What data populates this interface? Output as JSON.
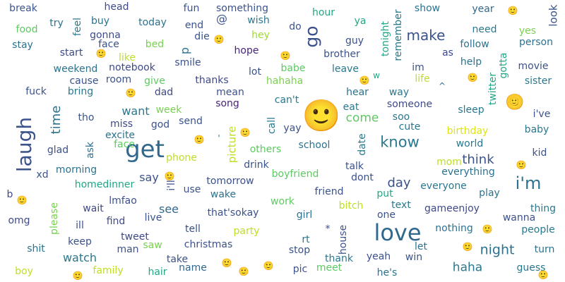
{
  "words": [
    {
      "text": "love",
      "color": "#31688e"
    },
    {
      "text": "get",
      "color": "#31688e"
    },
    {
      "text": "laugh",
      "color": "#3b528b"
    },
    {
      "text": "i'm",
      "color": "#2c728e"
    },
    {
      "text": "🙂",
      "color": "#21a685"
    },
    {
      "text": "know",
      "color": "#2a788e"
    },
    {
      "text": "day",
      "color": "#3b528b"
    },
    {
      "text": "night",
      "color": "#2c728e"
    },
    {
      "text": "make",
      "color": "#3b528b"
    },
    {
      "text": "go",
      "color": "#3b528b"
    },
    {
      "text": "come",
      "color": "#5ec962"
    },
    {
      "text": "time",
      "color": "#2c728e"
    },
    {
      "text": "think",
      "color": "#3b528b"
    },
    {
      "text": "haha",
      "color": "#2a788e"
    },
    {
      "text": "want",
      "color": "#2a788e"
    },
    {
      "text": "see",
      "color": "#31688e"
    },
    {
      "text": "say",
      "color": "#3b528b"
    },
    {
      "text": "watch",
      "color": "#2a788e"
    },
    {
      "text": "tonight",
      "color": "#21a685"
    },
    {
      "text": "something",
      "color": "#3b528b"
    },
    {
      "text": "🙂",
      "color": "#dde318"
    },
    {
      "text": "look",
      "color": "#3b528b"
    },
    {
      "text": "picture",
      "color": "#bddf26"
    },
    {
      "text": "head",
      "color": "#3e4a89"
    },
    {
      "text": "break",
      "color": "#3b528b"
    },
    {
      "text": "fun",
      "color": "#3b528b"
    },
    {
      "text": "wish",
      "color": "#2a788e"
    },
    {
      "text": "hour",
      "color": "#22a785"
    },
    {
      "text": "show",
      "color": "#2c728e"
    },
    {
      "text": "year",
      "color": "#31688e"
    },
    {
      "text": "🙂",
      "color": "#bddf26"
    },
    {
      "text": "food",
      "color": "#5ec962"
    },
    {
      "text": "try",
      "color": "#2c728e"
    },
    {
      "text": "feel",
      "color": "#2a788e"
    },
    {
      "text": "buy",
      "color": "#2c728e"
    },
    {
      "text": "today",
      "color": "#2c728e"
    },
    {
      "text": "end",
      "color": "#3b528b"
    },
    {
      "text": "@",
      "color": "#3b528b"
    },
    {
      "text": "do",
      "color": "#3b528b"
    },
    {
      "text": "ya",
      "color": "#22a785"
    },
    {
      "text": "remember",
      "color": "#2a788e"
    },
    {
      "text": "need",
      "color": "#2a788e"
    },
    {
      "text": "yes",
      "color": "#7ad151"
    },
    {
      "text": "stay",
      "color": "#2c728e"
    },
    {
      "text": "gonna",
      "color": "#3e4a89"
    },
    {
      "text": "face",
      "color": "#3b528b"
    },
    {
      "text": "bed",
      "color": "#7ad151"
    },
    {
      "text": "p",
      "color": "#2c728e"
    },
    {
      "text": "die",
      "color": "#3b528b"
    },
    {
      "text": "🙂",
      "color": "#3e4a89"
    },
    {
      "text": "hey",
      "color": "#a0da39"
    },
    {
      "text": "guy",
      "color": "#3b528b"
    },
    {
      "text": "follow",
      "color": "#2c728e"
    },
    {
      "text": "person",
      "color": "#2c728e"
    },
    {
      "text": "start",
      "color": "#3e4a89"
    },
    {
      "text": "🙂",
      "color": "#3e4a89"
    },
    {
      "text": "like",
      "color": "#bddf26"
    },
    {
      "text": "smile",
      "color": "#3b528b"
    },
    {
      "text": "hope",
      "color": "#482475"
    },
    {
      "text": "🙂",
      "color": "#bddf26"
    },
    {
      "text": "brother",
      "color": "#3b528b"
    },
    {
      "text": "as",
      "color": "#3e4a89"
    },
    {
      "text": "help",
      "color": "#2c728e"
    },
    {
      "text": "gotta",
      "color": "#21a685"
    },
    {
      "text": "movie",
      "color": "#3b528b"
    },
    {
      "text": "weekend",
      "color": "#2c728e"
    },
    {
      "text": "notebook",
      "color": "#3e4a89"
    },
    {
      "text": "lot",
      "color": "#3b528b"
    },
    {
      "text": "babe",
      "color": "#5ec962"
    },
    {
      "text": "leave",
      "color": "#2a788e"
    },
    {
      "text": "w",
      "color": "#22a785"
    },
    {
      "text": "im",
      "color": "#3b528b"
    },
    {
      "text": "🙂",
      "color": "#3e4a89"
    },
    {
      "text": "twitter",
      "color": "#21a685"
    },
    {
      "text": "sister",
      "color": "#2a788e"
    },
    {
      "text": "cause",
      "color": "#3b528b"
    },
    {
      "text": "room",
      "color": "#3b528b"
    },
    {
      "text": "give",
      "color": "#5ec962"
    },
    {
      "text": "hahaha",
      "color": "#7ad151"
    },
    {
      "text": "🙂",
      "color": "#3e4a89"
    },
    {
      "text": "life",
      "color": "#bddf26"
    },
    {
      "text": "fuck",
      "color": "#3b528b"
    },
    {
      "text": "bring",
      "color": "#2a788e"
    },
    {
      "text": "🙂",
      "color": "#bddf26"
    },
    {
      "text": "dad",
      "color": "#3e4a89"
    },
    {
      "text": "thanks",
      "color": "#3e4a89"
    },
    {
      "text": "mean",
      "color": "#3b528b"
    },
    {
      "text": "hear",
      "color": "#2c728e"
    },
    {
      "text": "way",
      "color": "#2a788e"
    },
    {
      "text": "^",
      "color": "#31688e"
    },
    {
      "text": "🙂",
      "color": "#dde318"
    },
    {
      "text": "can't",
      "color": "#2a788e"
    },
    {
      "text": "song",
      "color": "#482475"
    },
    {
      "text": "eat",
      "color": "#2a788e"
    },
    {
      "text": "someone",
      "color": "#3e4a89"
    },
    {
      "text": "tho",
      "color": "#3b528b"
    },
    {
      "text": "week",
      "color": "#7ad151"
    },
    {
      "text": "call",
      "color": "#2a788e"
    },
    {
      "text": "soo",
      "color": "#2a788e"
    },
    {
      "text": "sleep",
      "color": "#2a788e"
    },
    {
      "text": "i've",
      "color": "#3b528b"
    },
    {
      "text": "miss",
      "color": "#3e4a89"
    },
    {
      "text": "send",
      "color": "#3b528b"
    },
    {
      "text": "yay",
      "color": "#3b528b"
    },
    {
      "text": "cute",
      "color": "#2a788e"
    },
    {
      "text": "excite",
      "color": "#2c728e"
    },
    {
      "text": "god",
      "color": "#3b528b"
    },
    {
      "text": "🙂",
      "color": "#482475"
    },
    {
      "text": "'",
      "color": "#2a788e"
    },
    {
      "text": "🙂",
      "color": "#3b528b"
    },
    {
      "text": "birthday",
      "color": "#dde318"
    },
    {
      "text": "baby",
      "color": "#2a788e"
    },
    {
      "text": "glad",
      "color": "#3b528b"
    },
    {
      "text": "ask",
      "color": "#2c728e"
    },
    {
      "text": "others",
      "color": "#5ec962"
    },
    {
      "text": "school",
      "color": "#2c728e"
    },
    {
      "text": "date",
      "color": "#2a788e"
    },
    {
      "text": "world",
      "color": "#2a788e"
    },
    {
      "text": "kid",
      "color": "#3b528b"
    },
    {
      "text": "face",
      "color": "#5ec962"
    },
    {
      "text": "phone",
      "color": "#bddf26"
    },
    {
      "text": "drink",
      "color": "#3b528b"
    },
    {
      "text": "mom",
      "color": "#bddf26"
    },
    {
      "text": "🙂",
      "color": "#3e4a89"
    },
    {
      "text": "xd",
      "color": "#3b528b"
    },
    {
      "text": "morning",
      "color": "#2c728e"
    },
    {
      "text": "🙂",
      "color": "#3e4a89"
    },
    {
      "text": "talk",
      "color": "#3b528b"
    },
    {
      "text": "everything",
      "color": "#2c728e"
    },
    {
      "text": "boyfriend",
      "color": "#5ec962"
    },
    {
      "text": "dont",
      "color": "#3b528b"
    },
    {
      "text": "i'll",
      "color": "#3b528b"
    },
    {
      "text": "tomorrow",
      "color": "#3b528b"
    },
    {
      "text": "homedinner",
      "color": "#21a685"
    },
    {
      "text": "use",
      "color": "#3b528b"
    },
    {
      "text": "wake",
      "color": "#2c728e"
    },
    {
      "text": "everyone",
      "color": "#2a788e"
    },
    {
      "text": "b",
      "color": "#3e4a89"
    },
    {
      "text": "friend",
      "color": "#3b528b"
    },
    {
      "text": "put",
      "color": "#22a785"
    },
    {
      "text": "play",
      "color": "#2c728e"
    },
    {
      "text": "🙂",
      "color": "#7ad151"
    },
    {
      "text": "lmfao",
      "color": "#3b528b"
    },
    {
      "text": "work",
      "color": "#5ec962"
    },
    {
      "text": "text",
      "color": "#2a788e"
    },
    {
      "text": "wait",
      "color": "#3e4a89"
    },
    {
      "text": "that'sokay",
      "color": "#3b528b"
    },
    {
      "text": "bitch",
      "color": "#bddf26"
    },
    {
      "text": "gameenjoy",
      "color": "#3e4a89"
    },
    {
      "text": "thing",
      "color": "#2a788e"
    },
    {
      "text": "omg",
      "color": "#3e4a89"
    },
    {
      "text": "please",
      "color": "#7ad151"
    },
    {
      "text": "ill",
      "color": "#3b528b"
    },
    {
      "text": "find",
      "color": "#3e4a89"
    },
    {
      "text": "live",
      "color": "#3b528b"
    },
    {
      "text": "girl",
      "color": "#2c728e"
    },
    {
      "text": "one",
      "color": "#3b528b"
    },
    {
      "text": "wanna",
      "color": "#3b528b"
    },
    {
      "text": "tell",
      "color": "#3b528b"
    },
    {
      "text": "party",
      "color": "#bddf26"
    },
    {
      "text": "*",
      "color": "#3b528b"
    },
    {
      "text": "nothing",
      "color": "#2c728e"
    },
    {
      "text": "🙂",
      "color": "#3b528b"
    },
    {
      "text": "people",
      "color": "#2a788e"
    },
    {
      "text": "keep",
      "color": "#3b528b"
    },
    {
      "text": "tweet",
      "color": "#3e4a89"
    },
    {
      "text": "rt",
      "color": "#2a788e"
    },
    {
      "text": "house",
      "color": "#3b528b"
    },
    {
      "text": "🙂",
      "color": "#2c728e"
    },
    {
      "text": "shit",
      "color": "#2c728e"
    },
    {
      "text": "saw",
      "color": "#7ad151"
    },
    {
      "text": "christmas",
      "color": "#3b528b"
    },
    {
      "text": "man",
      "color": "#3b528b"
    },
    {
      "text": "stop",
      "color": "#3b528b"
    },
    {
      "text": "let",
      "color": "#2c728e"
    },
    {
      "text": "turn",
      "color": "#2c728e"
    },
    {
      "text": "take",
      "color": "#3b528b"
    },
    {
      "text": "win",
      "color": "#3b528b"
    },
    {
      "text": "yeah",
      "color": "#3b528b"
    },
    {
      "text": "thank",
      "color": "#2a788e"
    },
    {
      "text": "🙂",
      "color": "#bddf26"
    },
    {
      "text": "family",
      "color": "#bddf26"
    },
    {
      "text": "boy",
      "color": "#bddf26"
    },
    {
      "text": "🙂",
      "color": "#bddf26"
    },
    {
      "text": "hair",
      "color": "#22a785"
    },
    {
      "text": "name",
      "color": "#31688e"
    },
    {
      "text": "🙂",
      "color": "#482475"
    },
    {
      "text": "🙂",
      "color": "#2c728e"
    },
    {
      "text": "pic",
      "color": "#3b528b"
    },
    {
      "text": "meet",
      "color": "#5ec962"
    },
    {
      "text": "he's",
      "color": "#2c728e"
    },
    {
      "text": "guess",
      "color": "#2a788e"
    },
    {
      "text": "🙂",
      "color": "#7ad151"
    }
  ]
}
